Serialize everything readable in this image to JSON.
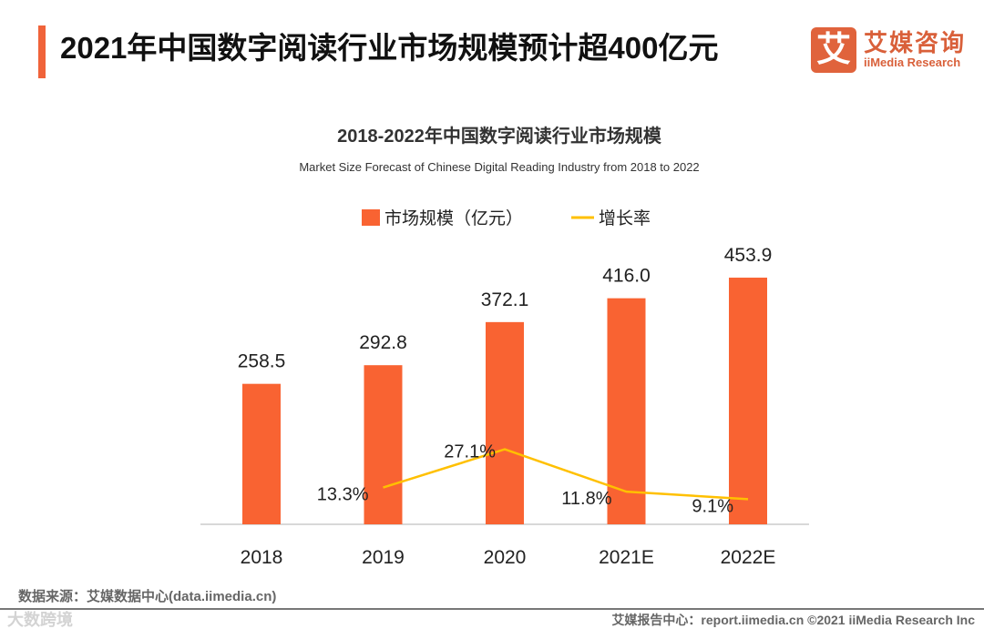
{
  "header": {
    "title": "2021年中国数字阅读行业市场规模预计超400亿元",
    "logo_cn": "艾媒咨询",
    "logo_en": "iiMedia Research",
    "logo_mark": "艾"
  },
  "chart_data": {
    "type": "bar",
    "title": "2018-2022年中国数字阅读行业市场规模",
    "subtitle": "Market Size Forecast of Chinese Digital Reading Industry from 2018 to 2022",
    "categories": [
      "2018",
      "2019",
      "2020",
      "2021E",
      "2022E"
    ],
    "series": [
      {
        "name": "市场规模（亿元）",
        "type": "bar",
        "color": "#f96332",
        "values": [
          258.5,
          292.8,
          372.1,
          416.0,
          453.9
        ],
        "labels": [
          "258.5",
          "292.8",
          "372.1",
          "416.0",
          "453.9"
        ]
      },
      {
        "name": "增长率",
        "type": "line",
        "color": "#ffc000",
        "values": [
          null,
          13.3,
          27.1,
          11.8,
          9.1
        ],
        "labels": [
          "",
          "13.3%",
          "27.1%",
          "11.8%",
          "9.1%"
        ]
      }
    ],
    "legend_position": "top-center",
    "grid": false
  },
  "footer": {
    "source": "数据来源：艾媒数据中心(data.iimedia.cn)",
    "credit": "艾媒报告中心：report.iimedia.cn   ©2021  iiMedia Research  Inc",
    "watermark": "大数跨境"
  }
}
